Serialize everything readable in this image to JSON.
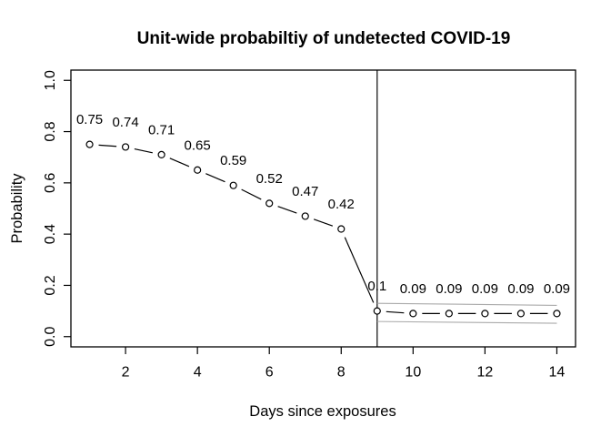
{
  "figure": {
    "background": "#ffffff"
  },
  "chart_data": {
    "type": "line",
    "title": "Unit-wide probabiltiy of undetected COVID-19",
    "xlabel": "Days since exposures",
    "ylabel": "Probability",
    "x": [
      1,
      2,
      3,
      4,
      5,
      6,
      7,
      8,
      9,
      10,
      11,
      12,
      13,
      14
    ],
    "values": [
      0.75,
      0.74,
      0.71,
      0.65,
      0.59,
      0.52,
      0.47,
      0.42,
      0.1,
      0.09,
      0.09,
      0.09,
      0.09,
      0.09
    ],
    "point_labels": [
      "0.75",
      "0.74",
      "0.71",
      "0.65",
      "0.59",
      "0.52",
      "0.47",
      "0.42",
      "0.1",
      "0.09",
      "0.09",
      "0.09",
      "0.09",
      "0.09"
    ],
    "x_ticks": [
      2,
      4,
      6,
      8,
      10,
      12,
      14
    ],
    "x_tick_labels": [
      "2",
      "4",
      "6",
      "8",
      "10",
      "12",
      "14"
    ],
    "y_ticks": [
      0.0,
      0.2,
      0.4,
      0.6,
      0.8,
      1.0
    ],
    "y_tick_labels": [
      "0.0",
      "0.2",
      "0.4",
      "0.6",
      "0.8",
      "1.0"
    ],
    "xlim": [
      0.48,
      14.52
    ],
    "ylim": [
      -0.04,
      1.04
    ],
    "reference_line_x": 9,
    "ci_upper": {
      "x": [
        9,
        14
      ],
      "y": [
        0.13,
        0.122
      ]
    },
    "ci_lower": {
      "x": [
        9,
        14
      ],
      "y": [
        0.059,
        0.052
      ]
    },
    "grid": false,
    "legend": null,
    "marker": "open-circle",
    "colors": {
      "series": "#000000",
      "marker_stroke": "#000000",
      "marker_fill": "#ffffff",
      "ci_band": "#aaaaaa",
      "reference_line": "#1a1a1a",
      "box": "#000000",
      "text": "#000000"
    }
  }
}
